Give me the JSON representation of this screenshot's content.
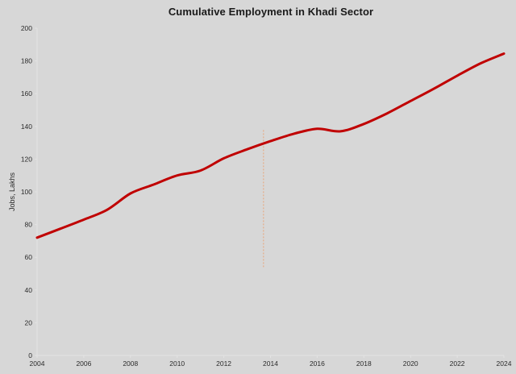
{
  "chart": {
    "title": "Cumulative Employment in Khadi Sector",
    "ylabel": "Jobs, Lakhs",
    "xlabel": ""
  },
  "colors": {
    "background": "#d7d7d7",
    "series_line": "#c00000",
    "annotation_dashed": "#e9a377",
    "axis_line": "#e3e3e3",
    "tick_text": "#2b2b2b"
  },
  "chart_data": {
    "type": "line",
    "title": "Cumulative Employment in Khadi Sector",
    "xlabel": "",
    "ylabel": "Jobs, Lakhs",
    "x": [
      2004,
      2005,
      2006,
      2007,
      2008,
      2009,
      2010,
      2011,
      2012,
      2013,
      2014,
      2015,
      2016,
      2017,
      2018,
      2019,
      2020,
      2021,
      2022,
      2023,
      2024
    ],
    "series": [
      {
        "name": "Cumulative employment in Khadi sector",
        "color": "#c00000",
        "smooth": true,
        "line_width": 3,
        "values": [
          72,
          77.5,
          83,
          89,
          99,
          104.5,
          110,
          113,
          120.5,
          126,
          131,
          135.5,
          138.5,
          137,
          141.5,
          148,
          155.5,
          163,
          171,
          178.5,
          184.5
        ]
      }
    ],
    "xlim": [
      2004,
      2024
    ],
    "ylim": [
      0,
      200
    ],
    "x_ticks": [
      2004,
      2006,
      2008,
      2010,
      2012,
      2014,
      2016,
      2018,
      2020,
      2022,
      2024
    ],
    "y_ticks": [
      0,
      20,
      40,
      60,
      80,
      100,
      120,
      140,
      160,
      180,
      200
    ],
    "grid": false,
    "legend": false,
    "annotations": [
      {
        "type": "vline-dashed",
        "x": 2013.7,
        "y_from": 54,
        "y_to": 138,
        "color": "#e9a377"
      }
    ]
  }
}
